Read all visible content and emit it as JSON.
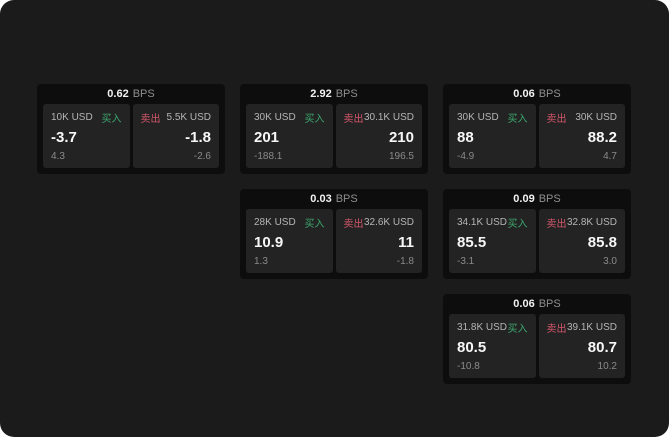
{
  "labels": {
    "buy": "买入",
    "sell": "卖出",
    "bps_unit": "BPS"
  },
  "colors": {
    "background": "#1b1b1b",
    "card": "#0d0d0d",
    "tile": "#232323",
    "buy_accent": "#3ca76e",
    "sell_accent": "#d4566a"
  },
  "cards": [
    {
      "bps": "0.62",
      "buy": {
        "amount": "10K USD",
        "value": "-3.7",
        "sub": "4.3"
      },
      "sell": {
        "amount": "5.5K USD",
        "value": "-1.8",
        "sub": "-2.6"
      }
    },
    {
      "bps": "2.92",
      "buy": {
        "amount": "30K USD",
        "value": "201",
        "sub": "-188.1"
      },
      "sell": {
        "amount": "30.1K USD",
        "value": "210",
        "sub": "196.5"
      }
    },
    {
      "bps": "0.06",
      "buy": {
        "amount": "30K USD",
        "value": "88",
        "sub": "-4.9"
      },
      "sell": {
        "amount": "30K USD",
        "value": "88.2",
        "sub": "4.7"
      }
    },
    {
      "bps": "0.03",
      "buy": {
        "amount": "28K USD",
        "value": "10.9",
        "sub": "1.3"
      },
      "sell": {
        "amount": "32.6K USD",
        "value": "11",
        "sub": "-1.8"
      }
    },
    {
      "bps": "0.09",
      "buy": {
        "amount": "34.1K USD",
        "value": "85.5",
        "sub": "-3.1"
      },
      "sell": {
        "amount": "32.8K USD",
        "value": "85.8",
        "sub": "3.0"
      }
    },
    {
      "bps": "0.06",
      "buy": {
        "amount": "31.8K USD",
        "value": "80.5",
        "sub": "-10.8"
      },
      "sell": {
        "amount": "39.1K USD",
        "value": "80.7",
        "sub": "10.2"
      }
    }
  ]
}
